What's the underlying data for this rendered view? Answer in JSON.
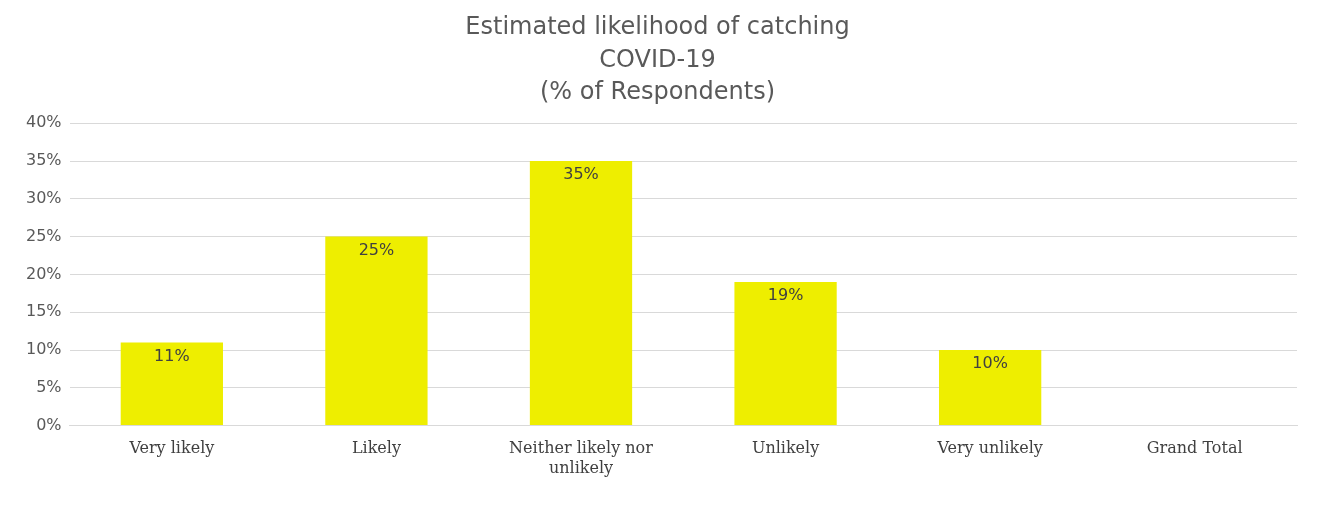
{
  "chart_data": {
    "type": "bar",
    "title": "Estimated likelihood of catching\nCOVID-19\n(% of Respondents)",
    "categories": [
      "Very likely",
      "Likely",
      "Neither likely nor unlikely",
      "Unlikely",
      "Very unlikely",
      "Grand Total"
    ],
    "values": [
      11,
      25,
      35,
      19,
      10,
      null
    ],
    "value_labels": [
      "11%",
      "25%",
      "35%",
      "19%",
      "10%",
      null
    ],
    "color": "#eeee00",
    "ylim": [
      0,
      40
    ],
    "yticks": [
      {
        "value": 0,
        "label": "0%"
      },
      {
        "value": 5,
        "label": "5%"
      },
      {
        "value": 10,
        "label": "10%"
      },
      {
        "value": 15,
        "label": "15%"
      },
      {
        "value": 20,
        "label": "20%"
      },
      {
        "value": 25,
        "label": "25%"
      },
      {
        "value": 30,
        "label": "30%"
      },
      {
        "value": 35,
        "label": "35%"
      },
      {
        "value": 40,
        "label": "40%"
      }
    ],
    "grid": "y"
  }
}
